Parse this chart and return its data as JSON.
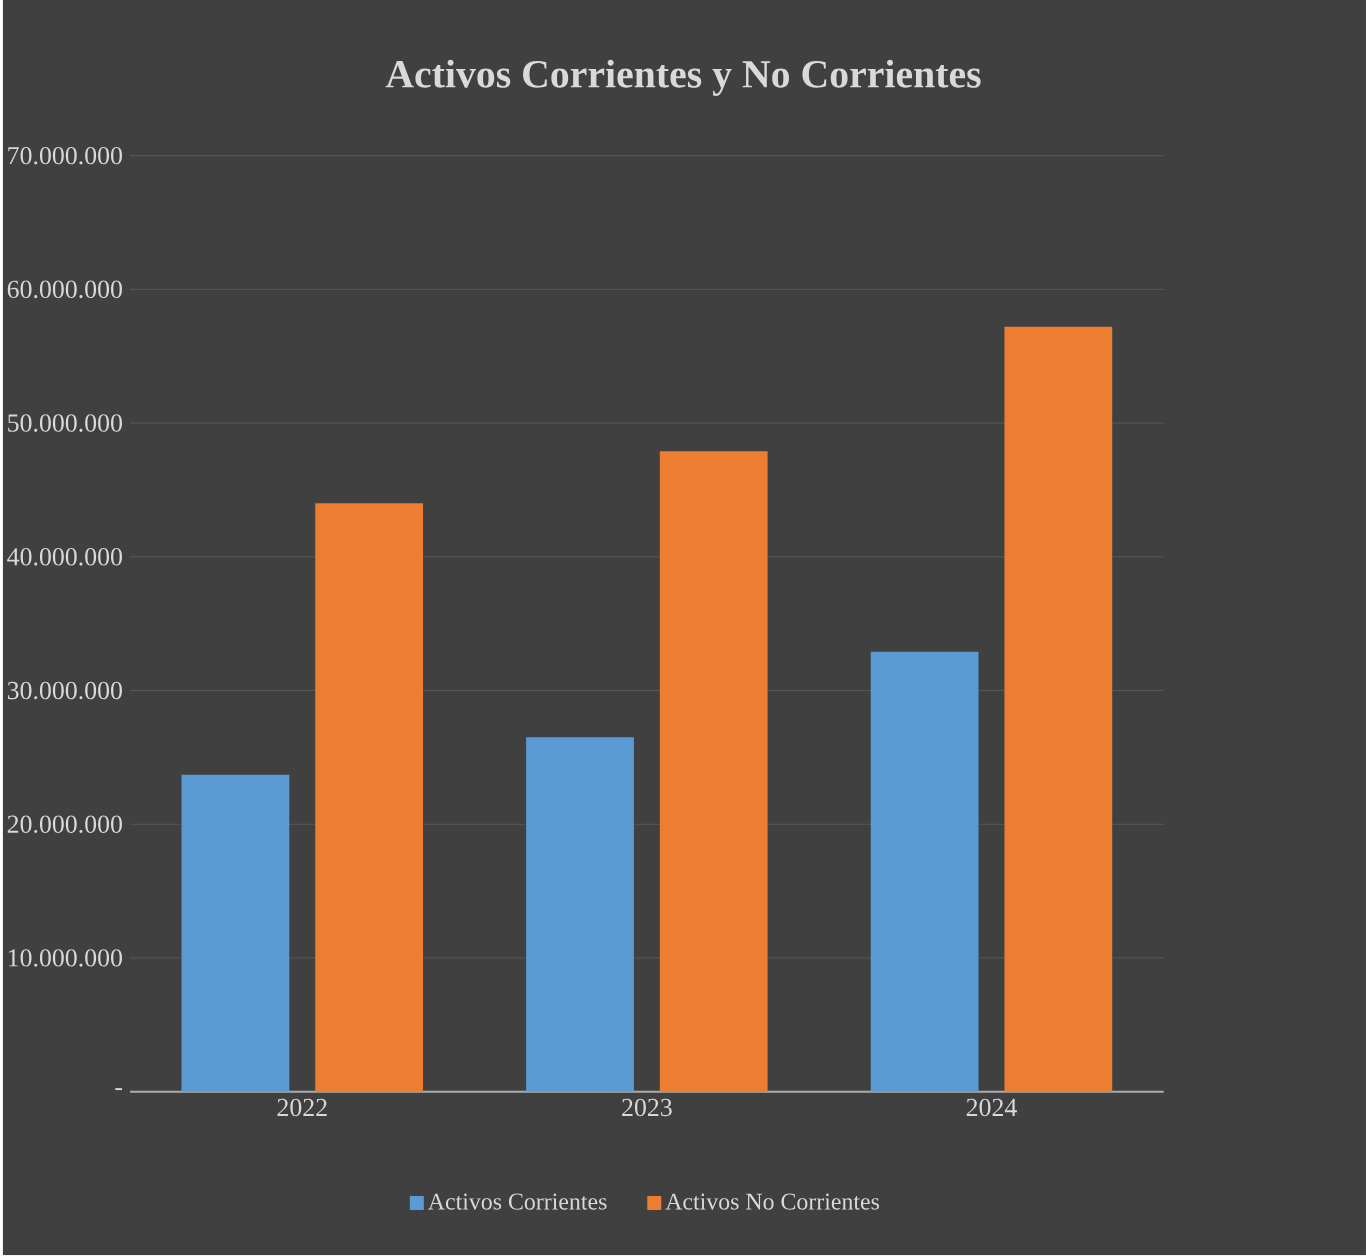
{
  "chart_data": {
    "type": "bar",
    "title": "Activos Corrientes y No Corrientes",
    "categories": [
      "2022",
      "2023",
      "2024"
    ],
    "series": [
      {
        "name": "Activos Corrientes",
        "color": "#5b9bd5",
        "values": [
          23700000,
          26500000,
          32900000
        ]
      },
      {
        "name": "Activos No Corrientes",
        "color": "#ed7d31",
        "values": [
          44000000,
          47900000,
          57200000
        ]
      }
    ],
    "ylim": [
      0,
      70000000
    ],
    "yticks": [
      {
        "value": 0,
        "label": "-"
      },
      {
        "value": 10000000,
        "label": "10.000.000"
      },
      {
        "value": 20000000,
        "label": "20.000.000"
      },
      {
        "value": 30000000,
        "label": "30.000.000"
      },
      {
        "value": 40000000,
        "label": "40.000.000"
      },
      {
        "value": 50000000,
        "label": "50.000.000"
      },
      {
        "value": 60000000,
        "label": "60.000.000"
      },
      {
        "value": 70000000,
        "label": "70.000.000"
      }
    ],
    "grid": "y",
    "legend": "bottom"
  }
}
